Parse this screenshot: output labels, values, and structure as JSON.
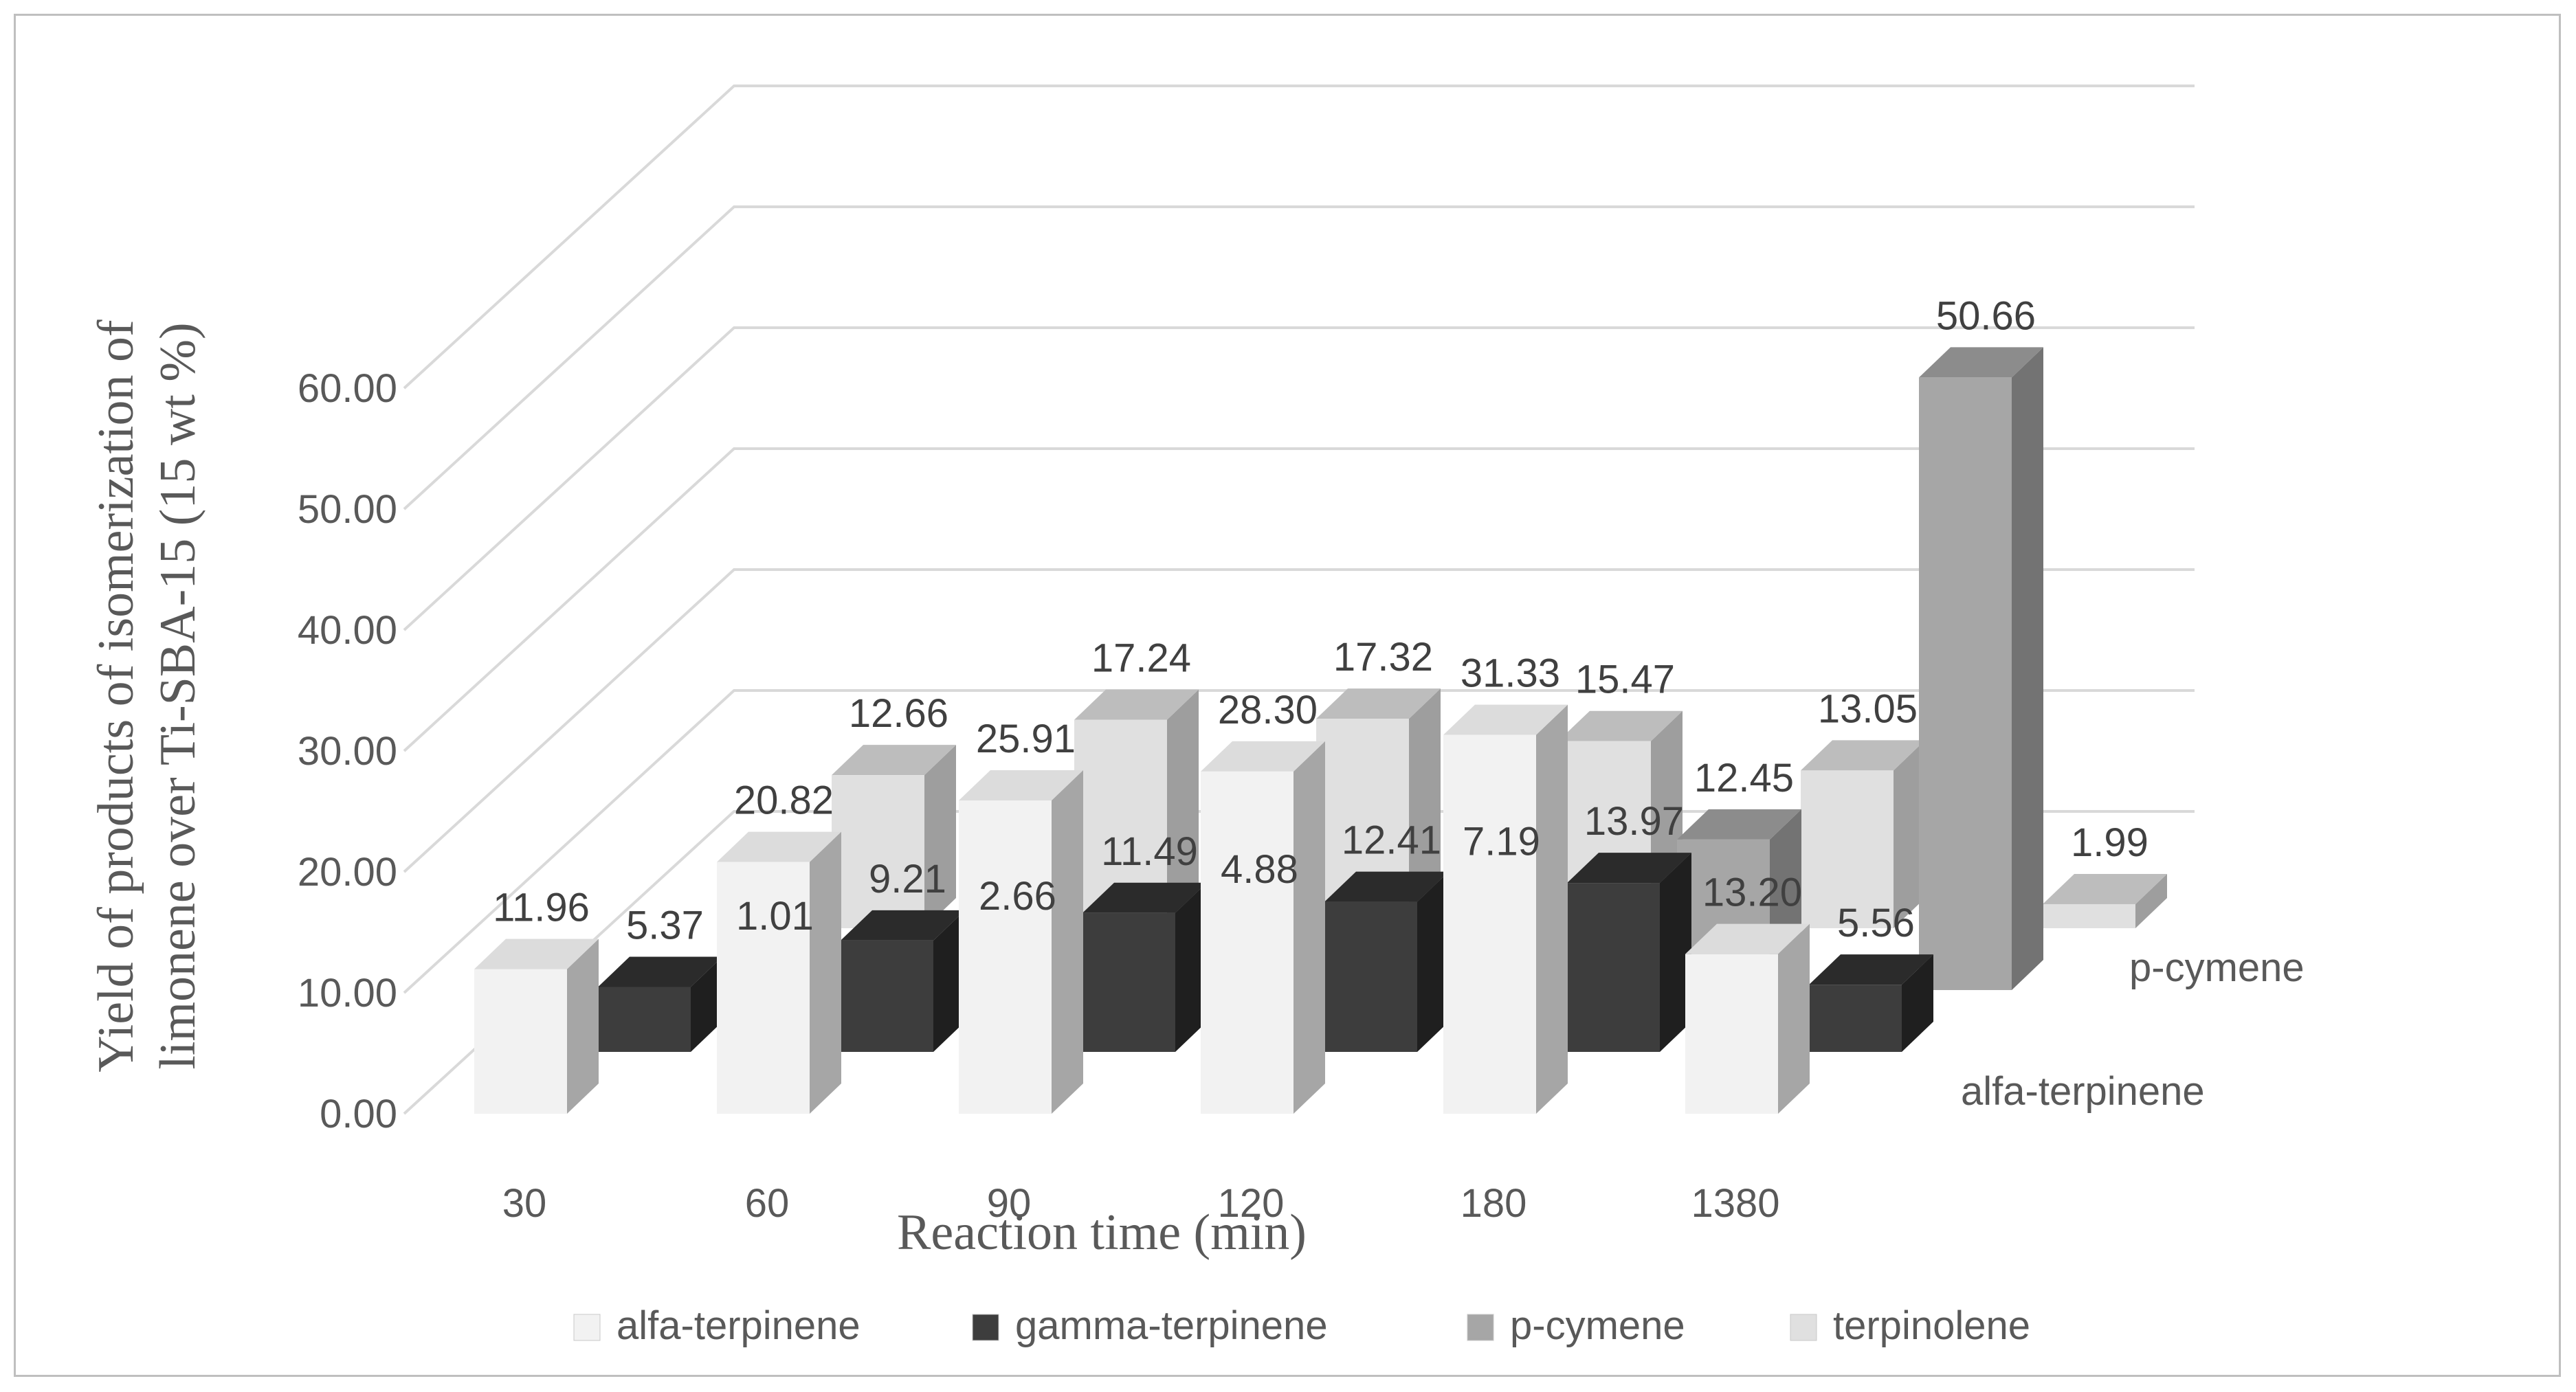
{
  "chart_data": {
    "type": "bar",
    "subtype": "3d-clustered-column",
    "title": "",
    "xlabel": "Reaction time (min)",
    "ylabel_lines": [
      "Yield of products of isomerization of",
      "limonene over Ti-SBA-15 (15 wt %)"
    ],
    "ylim": [
      0,
      60
    ],
    "yticks": [
      "0.00",
      "10.00",
      "20.00",
      "30.00",
      "40.00",
      "50.00",
      "60.00"
    ],
    "categories": [
      "30",
      "60",
      "90",
      "120",
      "180",
      "1380"
    ],
    "series": [
      {
        "name": "alfa-terpinene",
        "values": [
          11.96,
          20.82,
          25.91,
          28.3,
          31.33,
          13.2
        ],
        "labels": [
          "11.96",
          "20.82",
          "25.91",
          "28.30",
          "31.33",
          "13.20"
        ]
      },
      {
        "name": "gamma-terpinene",
        "values": [
          5.37,
          9.21,
          11.49,
          12.41,
          13.97,
          5.56
        ],
        "labels": [
          "5.37",
          "9.21",
          "11.49",
          "12.41",
          "13.97",
          "5.56"
        ]
      },
      {
        "name": "p-cymene",
        "values": [
          1.01,
          2.66,
          4.88,
          7.19,
          12.45,
          50.66
        ],
        "labels": [
          "1.01",
          "2.66",
          "4.88",
          "7.19",
          "12.45",
          "50.66"
        ]
      },
      {
        "name": "terpinolene",
        "values": [
          12.66,
          17.24,
          17.32,
          15.47,
          13.05,
          1.99
        ],
        "labels": [
          "12.66",
          "17.24",
          "17.32",
          "15.47",
          "13.05",
          "1.99"
        ]
      }
    ],
    "depth_labels": [
      "p-cymene",
      "alfa-terpinene"
    ],
    "legend_position": "bottom",
    "gridlines": true
  },
  "colors": {
    "alfa-terpinene": {
      "front": "#f2f2f2",
      "top": "#dcdcdc",
      "side": "#a6a6a6"
    },
    "gamma-terpinene": {
      "front": "#3d3d3d",
      "top": "#2b2b2b",
      "side": "#1f1f1f"
    },
    "p-cymene": {
      "front": "#a6a6a6",
      "top": "#8c8c8c",
      "side": "#737373"
    },
    "terpinolene": {
      "front": "#e0e0e0",
      "top": "#bdbdbd",
      "side": "#9e9e9e"
    },
    "grid": "#d9d9d9"
  }
}
